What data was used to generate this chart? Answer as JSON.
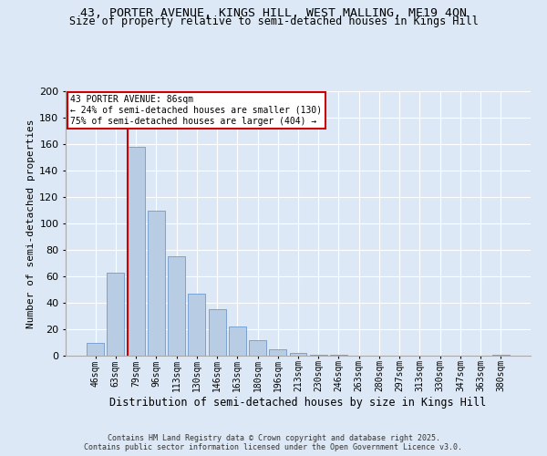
{
  "title_line1": "43, PORTER AVENUE, KINGS HILL, WEST MALLING, ME19 4QN",
  "title_line2": "Size of property relative to semi-detached houses in Kings Hill",
  "xlabel": "Distribution of semi-detached houses by size in Kings Hill",
  "ylabel": "Number of semi-detached properties",
  "categories": [
    "46sqm",
    "63sqm",
    "79sqm",
    "96sqm",
    "113sqm",
    "130sqm",
    "146sqm",
    "163sqm",
    "180sqm",
    "196sqm",
    "213sqm",
    "230sqm",
    "246sqm",
    "263sqm",
    "280sqm",
    "297sqm",
    "313sqm",
    "330sqm",
    "347sqm",
    "363sqm",
    "380sqm"
  ],
  "values": [
    10,
    63,
    158,
    110,
    75,
    47,
    35,
    22,
    12,
    5,
    2,
    1,
    1,
    0,
    0,
    0,
    0,
    0,
    0,
    0,
    1
  ],
  "bar_color": "#b8cce4",
  "bar_edge_color": "#5b8cc8",
  "vline_color": "#cc0000",
  "vline_x_index": 2,
  "annotation_title": "43 PORTER AVENUE: 86sqm",
  "annotation_line1": "← 24% of semi-detached houses are smaller (130)",
  "annotation_line2": "75% of semi-detached houses are larger (404) →",
  "annotation_box_facecolor": "#ffffff",
  "annotation_box_edgecolor": "#cc0000",
  "footer_line1": "Contains HM Land Registry data © Crown copyright and database right 2025.",
  "footer_line2": "Contains public sector information licensed under the Open Government Licence v3.0.",
  "background_color": "#dce8f5",
  "plot_bg_color": "#dce8f5",
  "grid_color": "#ffffff",
  "ylim": [
    0,
    200
  ],
  "yticks": [
    0,
    20,
    40,
    60,
    80,
    100,
    120,
    140,
    160,
    180,
    200
  ],
  "title1_fontsize": 9.5,
  "title2_fontsize": 8.5,
  "ylabel_fontsize": 8,
  "xlabel_fontsize": 8.5,
  "tick_fontsize": 7,
  "annot_fontsize": 7,
  "footer_fontsize": 6
}
